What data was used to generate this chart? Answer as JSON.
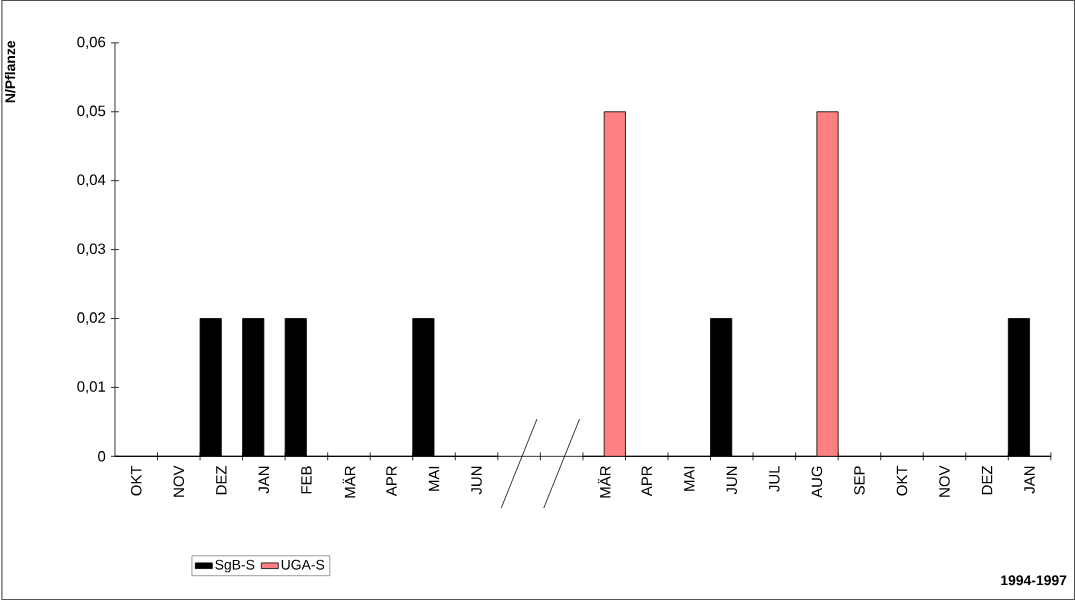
{
  "chart_data": {
    "type": "bar",
    "ylabel": "N/Pflanze",
    "annotations": [
      "1994-1997"
    ],
    "categories": [
      "OKT",
      "NOV",
      "DEZ",
      "JAN",
      "FEB",
      "MÄR",
      "APR",
      "MAI",
      "JUN",
      null,
      null,
      "MÄR",
      "APR",
      "MAI",
      "JUN",
      "JUL",
      "AUG",
      "SEP",
      "OKT",
      "NOV",
      "DEZ",
      "JAN"
    ],
    "series": [
      {
        "name": "SgB-S",
        "color": "#000000",
        "values": [
          0,
          0,
          0.02,
          0.02,
          0.02,
          0,
          0,
          0.02,
          0,
          null,
          null,
          0,
          0,
          0,
          0.02,
          0,
          0,
          0,
          0,
          0,
          0,
          0.02
        ]
      },
      {
        "name": "UGA-S",
        "color": "#ff8080",
        "values": [
          0,
          0,
          0,
          0,
          0,
          0,
          0,
          0,
          0,
          null,
          null,
          0.05,
          0,
          0,
          0,
          0,
          0.05,
          0,
          0,
          0,
          0,
          0
        ]
      }
    ],
    "ylim": [
      0,
      0.06
    ],
    "yticks": [
      0,
      {
        "value": 0.01,
        "label": "0,01"
      },
      {
        "value": 0.02,
        "label": "0,02"
      },
      {
        "value": 0.03,
        "label": "0,03"
      },
      {
        "value": 0.04,
        "label": "0,04"
      },
      {
        "value": 0.05,
        "label": "0,05"
      },
      {
        "value": 0.06,
        "label": "0,06"
      }
    ],
    "grid": false,
    "legend": "bottom left"
  }
}
